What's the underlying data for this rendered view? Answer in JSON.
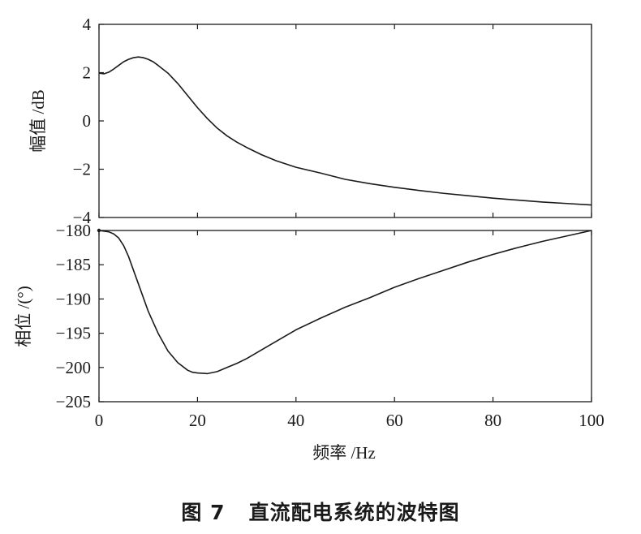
{
  "caption": {
    "number": "图 7",
    "title": "直流配电系统的波特图"
  },
  "chart_data": [
    {
      "type": "line",
      "panel": "magnitude",
      "ylabel": "幅值 /dB",
      "xlabel": "",
      "xlim": [
        0,
        100
      ],
      "ylim": [
        -4,
        4
      ],
      "yticks": [
        4,
        2,
        0,
        -2,
        -4
      ],
      "ytick_labels": [
        "4",
        "2",
        "0",
        "−2",
        "−4"
      ],
      "xticks": [
        0,
        20,
        40,
        60,
        80,
        100
      ],
      "series": [
        {
          "x": [
            0,
            1,
            2,
            3,
            4,
            5,
            6,
            7,
            8,
            9,
            10,
            11,
            12,
            14,
            16,
            18,
            20,
            22,
            24,
            26,
            28,
            30,
            33,
            36,
            40,
            45,
            50,
            55,
            60,
            65,
            70,
            75,
            80,
            85,
            90,
            95,
            100
          ],
          "y": [
            1.98,
            1.95,
            2.02,
            2.15,
            2.3,
            2.45,
            2.55,
            2.62,
            2.65,
            2.62,
            2.55,
            2.45,
            2.3,
            1.98,
            1.55,
            1.05,
            0.55,
            0.1,
            -0.3,
            -0.62,
            -0.88,
            -1.1,
            -1.4,
            -1.65,
            -1.92,
            -2.16,
            -2.42,
            -2.6,
            -2.75,
            -2.88,
            -3.0,
            -3.1,
            -3.2,
            -3.28,
            -3.36,
            -3.42,
            -3.48
          ]
        }
      ]
    },
    {
      "type": "line",
      "panel": "phase",
      "ylabel": "相位 /(°)",
      "xlabel": "频率 /Hz",
      "xlim": [
        0,
        100
      ],
      "ylim": [
        -205,
        -180
      ],
      "yticks": [
        -180,
        -185,
        -190,
        -195,
        -200,
        -205
      ],
      "ytick_labels": [
        "−180",
        "−185",
        "−190",
        "−195",
        "−200",
        "−205"
      ],
      "xticks": [
        0,
        20,
        40,
        60,
        80,
        100
      ],
      "xtick_labels": [
        "0",
        "20",
        "40",
        "60",
        "80",
        "100"
      ],
      "series": [
        {
          "x": [
            0,
            1,
            2,
            3,
            4,
            5,
            6,
            8,
            10,
            12,
            14,
            16,
            18,
            19,
            20,
            22,
            24,
            26,
            28,
            30,
            35,
            40,
            45,
            50,
            55,
            60,
            65,
            70,
            75,
            80,
            85,
            90,
            95,
            100
          ],
          "y": [
            -180.0,
            -180.1,
            -180.2,
            -180.5,
            -181.1,
            -182.2,
            -183.8,
            -187.8,
            -191.8,
            -195.0,
            -197.6,
            -199.3,
            -200.4,
            -200.7,
            -200.8,
            -200.9,
            -200.6,
            -200.0,
            -199.4,
            -198.7,
            -196.6,
            -194.5,
            -192.8,
            -191.2,
            -189.8,
            -188.3,
            -187.0,
            -185.8,
            -184.6,
            -183.5,
            -182.5,
            -181.6,
            -180.8,
            -180.0
          ]
        }
      ]
    }
  ]
}
